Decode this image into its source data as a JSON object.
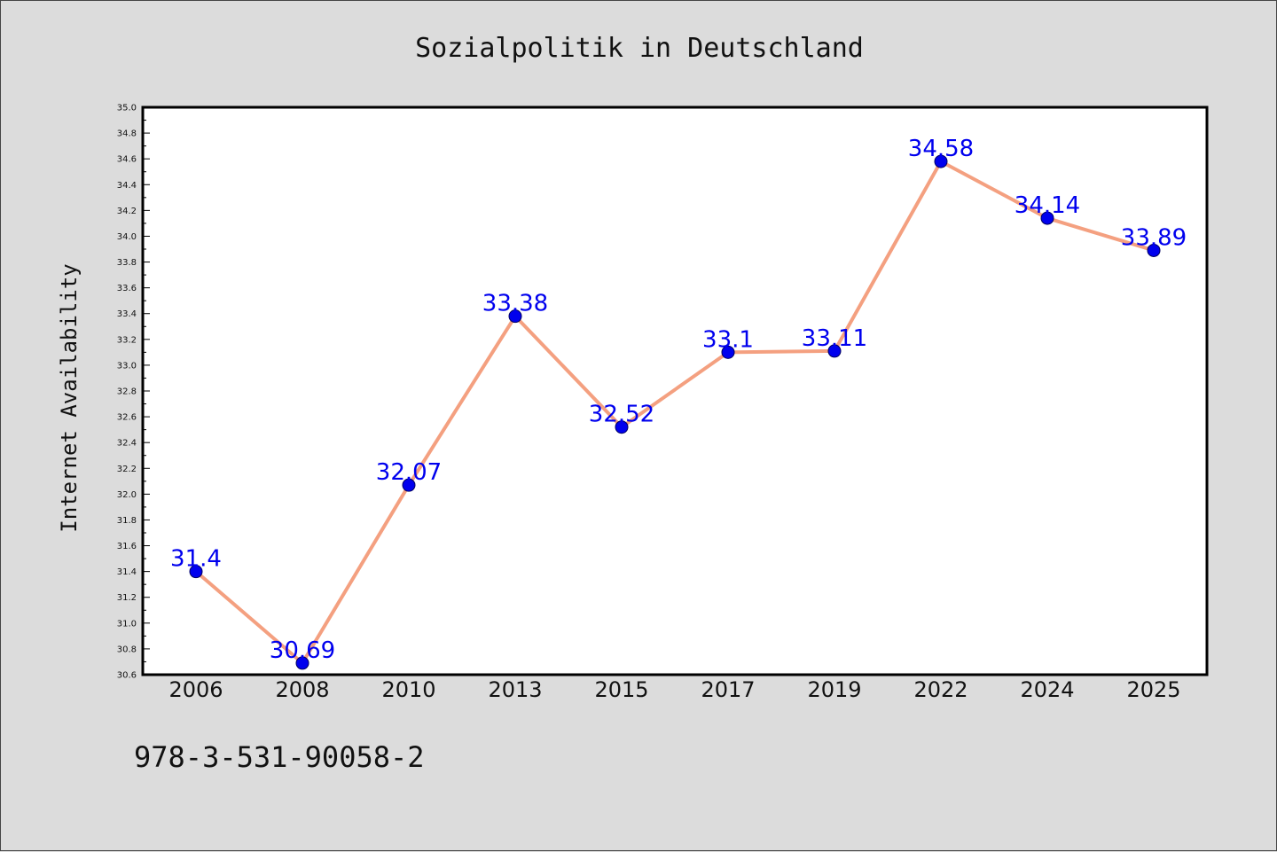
{
  "chart_data": {
    "type": "line",
    "title": "Sozialpolitik in Deutschland",
    "xlabel": "",
    "ylabel": "Internet Availability",
    "categories": [
      "2006",
      "2008",
      "2010",
      "2013",
      "2015",
      "2017",
      "2019",
      "2022",
      "2024",
      "2025"
    ],
    "series": [
      {
        "values": [
          31.4,
          30.69,
          32.07,
          33.38,
          32.52,
          33.1,
          33.11,
          34.58,
          34.14,
          33.89
        ],
        "labels": [
          "31.4",
          "30.69",
          "32.07",
          "33.38",
          "32.52",
          "33.1",
          "33.11",
          "34.58",
          "34.14",
          "33.89"
        ]
      }
    ],
    "ylim": [
      30.6,
      35.0
    ],
    "yticks": [
      "30.6",
      "30.8",
      "31.0",
      "31.2",
      "31.4",
      "31.6",
      "31.8",
      "32.0",
      "32.2",
      "32.4",
      "32.6",
      "32.8",
      "33.0",
      "33.2",
      "33.4",
      "33.6",
      "33.8",
      "34.0",
      "34.2",
      "34.4",
      "34.6",
      "34.8",
      "35.0"
    ],
    "grid": false,
    "legend": "none",
    "colors": {
      "line": "#f4a080",
      "marker": "#0000ee",
      "label": "#0000ee",
      "background": "#dcdcdc",
      "plot_area": "#ffffff"
    }
  },
  "footer": {
    "code": "978-3-531-90058-2"
  }
}
